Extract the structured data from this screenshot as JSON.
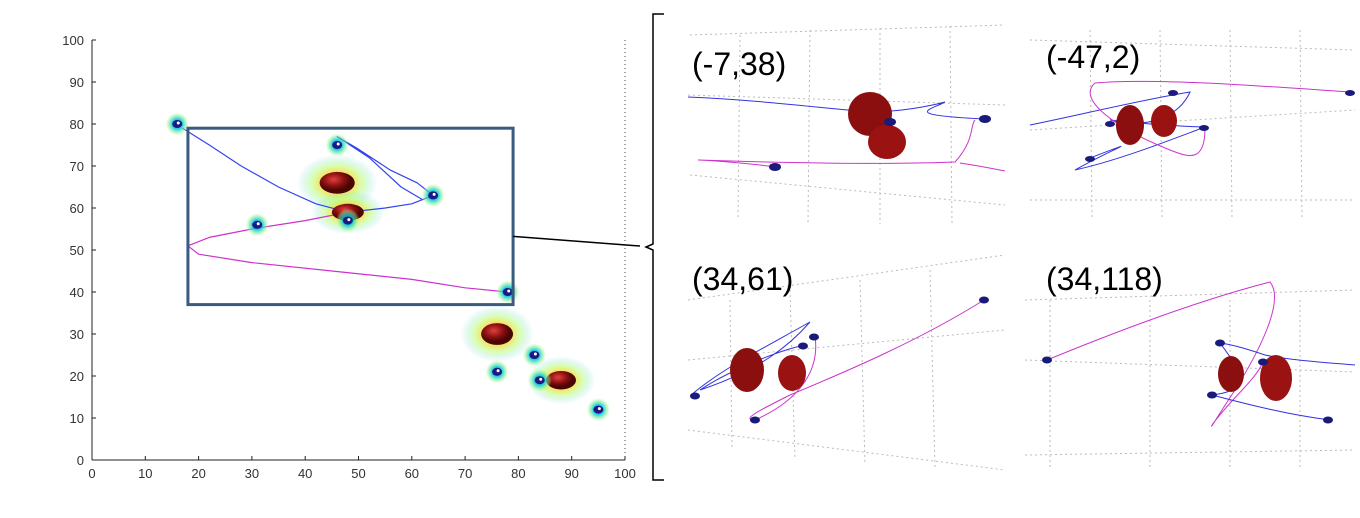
{
  "chart_data": {
    "type": "scatter",
    "xlim": [
      0,
      100
    ],
    "ylim": [
      0,
      100
    ],
    "xticks": [
      "0",
      "10",
      "20",
      "30",
      "40",
      "50",
      "60",
      "70",
      "80",
      "90",
      "100"
    ],
    "yticks": [
      "0",
      "10",
      "20",
      "30",
      "40",
      "50",
      "60",
      "70",
      "80",
      "90",
      "100"
    ],
    "grid": false,
    "markers": [
      {
        "x": 16,
        "y": 80
      },
      {
        "x": 46,
        "y": 75
      },
      {
        "x": 64,
        "y": 63
      },
      {
        "x": 31,
        "y": 56
      },
      {
        "x": 48,
        "y": 57
      },
      {
        "x": 78,
        "y": 40
      },
      {
        "x": 83,
        "y": 25
      },
      {
        "x": 76,
        "y": 21
      },
      {
        "x": 84,
        "y": 19
      },
      {
        "x": 95,
        "y": 12
      }
    ],
    "blobs": [
      {
        "x": 46,
        "y": 66,
        "rx": 3.3,
        "ry": 2.6
      },
      {
        "x": 48,
        "y": 59,
        "rx": 3.0,
        "ry": 2.0
      },
      {
        "x": 76,
        "y": 30,
        "rx": 3.0,
        "ry": 2.6
      },
      {
        "x": 88,
        "y": 19,
        "rx": 2.8,
        "ry": 2.2
      }
    ],
    "blue_path": [
      [
        17,
        79
      ],
      [
        22,
        75
      ],
      [
        28,
        70
      ],
      [
        35,
        65
      ],
      [
        42,
        61
      ],
      [
        48,
        59
      ],
      [
        55,
        60
      ],
      [
        60,
        61
      ],
      [
        64,
        63
      ],
      [
        61,
        66
      ],
      [
        56,
        69
      ],
      [
        50,
        74
      ],
      [
        46,
        77
      ],
      [
        52,
        72
      ],
      [
        58,
        65
      ],
      [
        62,
        62
      ]
    ],
    "magenta_path": [
      [
        48,
        59
      ],
      [
        40,
        57
      ],
      [
        30,
        55
      ],
      [
        22,
        53
      ],
      [
        18,
        51
      ],
      [
        20,
        49
      ],
      [
        30,
        47
      ],
      [
        45,
        45
      ],
      [
        60,
        43
      ],
      [
        70,
        41
      ],
      [
        78,
        40
      ]
    ],
    "zoom_box": {
      "x0": 18,
      "y0": 37,
      "x1": 79,
      "y1": 79
    },
    "views": [
      {
        "label": "(-7,38)"
      },
      {
        "label": "(-47,2)"
      },
      {
        "label": "(34,61)"
      },
      {
        "label": "(34,118)"
      }
    ]
  }
}
